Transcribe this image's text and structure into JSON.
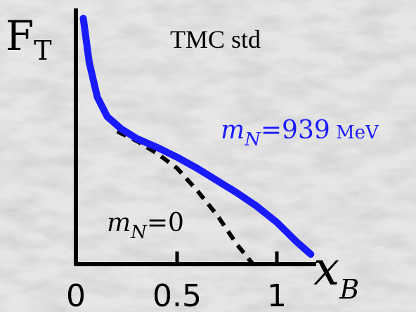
{
  "chart_data": {
    "type": "line",
    "title": "TMC std",
    "ylabel_main": "F",
    "ylabel_sub": "T",
    "xlabel_main": "x",
    "xlabel_sub": "B",
    "x_ticks": [
      "0",
      "0.5",
      "1"
    ],
    "xlim": [
      0,
      1.2
    ],
    "series": [
      {
        "label_var": "m",
        "label_sub": "N",
        "label_eq": "=939",
        "label_unit": " MeV",
        "color": "#1a1aff",
        "style": "solid",
        "x": [
          0.03,
          0.06,
          0.1,
          0.15,
          0.22,
          0.3,
          0.4,
          0.5,
          0.6,
          0.7,
          0.8,
          0.9,
          1.0,
          1.1,
          1.17
        ],
        "y": [
          1.0,
          0.82,
          0.68,
          0.6,
          0.55,
          0.51,
          0.475,
          0.435,
          0.39,
          0.34,
          0.29,
          0.235,
          0.17,
          0.09,
          0.04
        ]
      },
      {
        "label_var": "m",
        "label_sub": "N",
        "label_eq": "=0",
        "color": "#000000",
        "style": "dashed",
        "x": [
          0.2,
          0.3,
          0.4,
          0.5,
          0.6,
          0.7,
          0.8,
          0.88
        ],
        "y": [
          0.54,
          0.5,
          0.45,
          0.39,
          0.3,
          0.2,
          0.08,
          0.0
        ]
      }
    ]
  }
}
